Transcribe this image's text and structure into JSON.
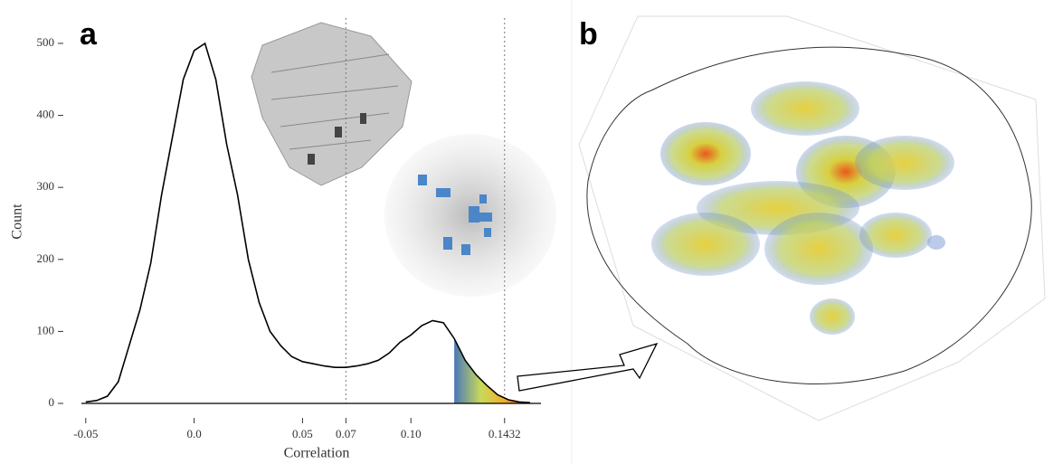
{
  "panels": [
    "a",
    "b"
  ],
  "chart_data": {
    "type": "line",
    "xlabel": "Correlation",
    "ylabel": "Count",
    "color": "#000000",
    "x": [
      -0.05,
      -0.045,
      -0.04,
      -0.035,
      -0.03,
      -0.025,
      -0.02,
      -0.015,
      -0.01,
      -0.005,
      0.0,
      0.005,
      0.01,
      0.015,
      0.02,
      0.025,
      0.03,
      0.035,
      0.04,
      0.045,
      0.05,
      0.055,
      0.06,
      0.065,
      0.07,
      0.075,
      0.08,
      0.085,
      0.09,
      0.095,
      0.1,
      0.105,
      0.11,
      0.115,
      0.12,
      0.125,
      0.13,
      0.135,
      0.14,
      0.145,
      0.15,
      0.155
    ],
    "values": [
      2,
      4,
      10,
      30,
      80,
      130,
      195,
      290,
      370,
      450,
      490,
      500,
      450,
      360,
      290,
      200,
      140,
      100,
      80,
      65,
      58,
      55,
      52,
      50,
      50,
      52,
      55,
      60,
      70,
      85,
      95,
      108,
      115,
      112,
      90,
      60,
      40,
      25,
      12,
      5,
      2,
      1
    ],
    "xlim": [
      -0.052,
      0.16
    ],
    "ylim": [
      0,
      510
    ],
    "xticks": [
      -0.05,
      {
        "value": 0.0,
        "label": "0.0"
      },
      0.05,
      0.07,
      {
        "value": 0.1,
        "label": "0.10"
      },
      0.1432
    ],
    "yticks": [
      0,
      100,
      200,
      300,
      400,
      500
    ],
    "vlines": [
      0.07,
      0.1432
    ],
    "shaded_from": 0.12
  }
}
